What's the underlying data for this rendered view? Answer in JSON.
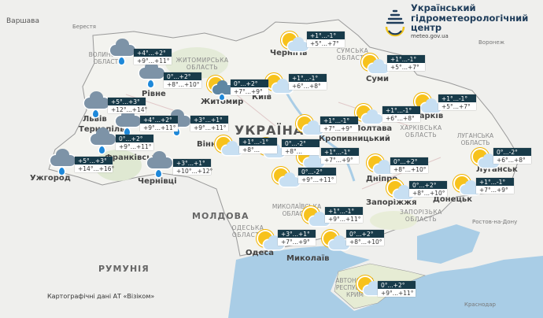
{
  "logo": {
    "line1": "Український",
    "line2": "гідрометеорологічний",
    "line3": "центр",
    "url": "meteo.gov.ua"
  },
  "credit": "Картографічні дані АТ «Візіком»",
  "colors": {
    "label_bg": "#183b4a",
    "sun": "#f7c21c",
    "cloud": "#c7dff2",
    "rain_cloud": "#7d93a7",
    "drop": "#1e88d9",
    "sea": "#a9cde6"
  },
  "places": {
    "warsaw": "Варшава",
    "brest": "Берестя",
    "voronezh": "Воронеж",
    "rostov": "Ростов-на-Дону",
    "krasnodar": "Краснодар",
    "chernihiv": "Чернігів",
    "sumy": "Суми",
    "kyiv": "Київ",
    "zhytomyr": "Житомир",
    "rivne": "Рівне",
    "lviv": "Львів",
    "ternopil": "Тернопіль",
    "frankivsk": "Франківськ",
    "uzhhorod": "Ужгород",
    "chernivtsi": "Чернівці",
    "vinnytsia": "Вінниця",
    "poltava": "Полтава",
    "kharkiv": "Харків",
    "dnipro": "Дніпро",
    "zaporizhzhia": "Запоріжжя",
    "donetsk": "Донецьк",
    "luhansk": "Луганськ",
    "mykolaiv": "Миколаїв",
    "odesa": "Одеса",
    "kropyvnytskyi": "Кропивницький",
    "ukraine": "УКРАЇНА",
    "moldova": "МОЛДОВА",
    "romania": "РУМУНІЯ",
    "sumy_obl": "СУМСЬКА ОБЛАСТЬ",
    "kharkiv_obl": "ХАРКІВСЬКА ОБЛАСТЬ",
    "luhansk_obl": "ЛУГАНСЬКА ОБЛАСТЬ",
    "zaporizhzhia_obl": "ЗАПОРІЗЬКА ОБЛАСТЬ",
    "mykolaiv_obl": "МИКОЛАЇВСЬКА ОБЛАСТЬ",
    "odesa_obl": "ОДЕСЬКА ОБЛАСТЬ",
    "volyn_obl": "ВОЛИНСЬКА ОБЛАСТЬ",
    "zhytomyr_obl": "ЖИТОМИРСЬКА ОБЛАСТЬ",
    "crimea": "АВТОНОМНА РЕСПУБЛІКА КРИМ"
  },
  "forecasts": [
    {
      "region": "volyn",
      "icon": "rain",
      "night": "+4°...+2°",
      "day": "+9°...+11°"
    },
    {
      "region": "rivne",
      "icon": "rain",
      "night": "0°...+2°",
      "day": "+8°...+10°"
    },
    {
      "region": "zhytomyr",
      "icon": "sun-rain",
      "night": "0°...+2°",
      "day": "+7°...+9°"
    },
    {
      "region": "chernihiv",
      "icon": "partly-cloudy",
      "night": "+1°...-1°",
      "day": "+5°...+7°"
    },
    {
      "region": "sumy",
      "icon": "partly-cloudy",
      "night": "+1°...-1°",
      "day": "+5°...+7°"
    },
    {
      "region": "kyiv",
      "icon": "partly-cloudy",
      "night": "+1°...-1°",
      "day": "+6°...+8°"
    },
    {
      "region": "lviv",
      "icon": "rain",
      "night": "+5°...+3°",
      "day": "+12°...+14°"
    },
    {
      "region": "ternopil",
      "icon": "rain",
      "night": "+4°...+2°",
      "day": "+9°...+11°"
    },
    {
      "region": "khmelnytskyi",
      "icon": "rain",
      "night": "+3°...+1°",
      "day": "+9°...+11°"
    },
    {
      "region": "frankivsk",
      "icon": "rain",
      "night": "0°...+2°",
      "day": "+9°...+11°"
    },
    {
      "region": "uzhhorod",
      "icon": "rain",
      "night": "+5°...+3°",
      "day": "+14°...+16°"
    },
    {
      "region": "chernivtsi",
      "icon": "rain",
      "night": "+3°...+1°",
      "day": "+10°...+12°"
    },
    {
      "region": "vinnytsia",
      "icon": "partly-cloudy",
      "night": "+1°...-1°",
      "day": "+8°..."
    },
    {
      "region": "cherkasy",
      "icon": "partly-cloudy",
      "night": "0°...-2°",
      "day": "+8°..."
    },
    {
      "region": "poltava-west",
      "icon": "partly-cloudy",
      "night": "+1°...-1°",
      "day": "+7°...+9°"
    },
    {
      "region": "poltava",
      "icon": "partly-cloudy",
      "night": "+1°...-1°",
      "day": "+6°...+8°"
    },
    {
      "region": "kharkiv",
      "icon": "partly-cloudy",
      "night": "+1°...-1°",
      "day": "+5°...+7°"
    },
    {
      "region": "center",
      "icon": "partly-cloudy",
      "night": "+1°...-1°",
      "day": "+7°...+9°"
    },
    {
      "region": "kropyvnytskyi",
      "icon": "partly-cloudy",
      "night": "0°...-2°",
      "day": "+9°...+11°"
    },
    {
      "region": "dnipro",
      "icon": "partly-cloudy",
      "night": "0°...+2°",
      "day": "+8°...+10°"
    },
    {
      "region": "zaporizhzhia",
      "icon": "partly-cloudy",
      "night": "0°...+2°",
      "day": "+8°...+10°"
    },
    {
      "region": "donetsk",
      "icon": "partly-cloudy",
      "night": "+1°...-1°",
      "day": "+7°...+9°"
    },
    {
      "region": "luhansk",
      "icon": "partly-cloudy",
      "night": "0°...-2°",
      "day": "+6°...+8°"
    },
    {
      "region": "mykolaiv",
      "icon": "partly-cloudy",
      "night": "+1°...-1°",
      "day": "+9°...+11°"
    },
    {
      "region": "odesa",
      "icon": "partly-cloudy",
      "night": "+3°...+1°",
      "day": "+7°...+9°"
    },
    {
      "region": "kherson",
      "icon": "partly-cloudy",
      "night": "0°...+2°",
      "day": "+8°...+10°"
    },
    {
      "region": "crimea",
      "icon": "partly-cloudy",
      "night": "0°...+2°",
      "day": "+9°...+11°"
    }
  ]
}
